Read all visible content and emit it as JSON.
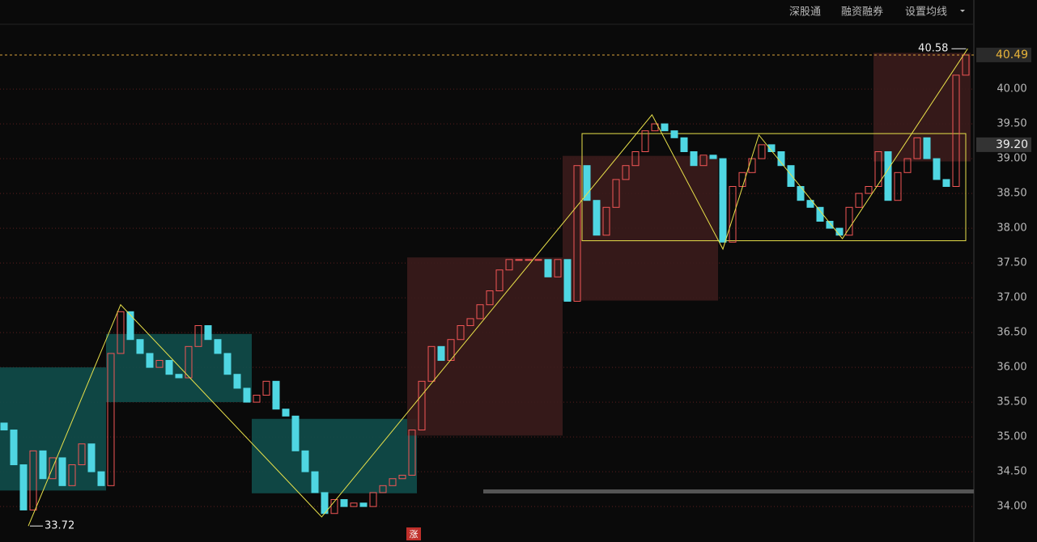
{
  "toolbar": [
    "深股通",
    "融资融券",
    "设置均线"
  ],
  "badge": "涨",
  "chart_data": {
    "type": "candlestick",
    "open": [
      35.2,
      35.1,
      34.6,
      33.95,
      34.8,
      34.4,
      34.7,
      34.3,
      34.6,
      34.9,
      34.5,
      34.3,
      36.2,
      36.8,
      36.4,
      36.2,
      36.0,
      36.1,
      35.9,
      35.85,
      36.3,
      36.6,
      36.4,
      36.2,
      35.9,
      35.7,
      35.5,
      35.6,
      35.8,
      35.4,
      35.3,
      34.8,
      34.5,
      34.2,
      33.9,
      34.1,
      34.0,
      34.05,
      34.0,
      34.2,
      34.3,
      34.4,
      34.45,
      35.1,
      35.8,
      36.3,
      36.1,
      36.4,
      36.6,
      36.7,
      36.9,
      37.1,
      37.4,
      37.55,
      37.55,
      37.55,
      37.55,
      37.3,
      37.55,
      36.95,
      38.9,
      38.4,
      37.9,
      38.3,
      38.7,
      38.9,
      39.1,
      39.4,
      39.5,
      39.4,
      39.3,
      39.1,
      38.9,
      39.05,
      39.0,
      37.8,
      38.6,
      38.8,
      39.0,
      39.2,
      39.1,
      38.9,
      38.6,
      38.4,
      38.3,
      38.1,
      38.0,
      37.9,
      38.3,
      38.5,
      38.6,
      39.1,
      38.4,
      38.8,
      39.0,
      39.3,
      39.0,
      38.7,
      38.6,
      40.2
    ],
    "close": [
      35.1,
      34.6,
      33.95,
      34.8,
      34.4,
      34.7,
      34.3,
      34.6,
      34.9,
      34.5,
      34.3,
      36.2,
      36.8,
      36.4,
      36.2,
      36.0,
      36.1,
      35.9,
      35.85,
      36.3,
      36.6,
      36.4,
      36.2,
      35.9,
      35.7,
      35.5,
      35.6,
      35.8,
      35.4,
      35.3,
      34.8,
      34.5,
      34.2,
      33.9,
      34.1,
      34.0,
      34.05,
      34.0,
      34.2,
      34.3,
      34.4,
      34.45,
      35.1,
      35.8,
      36.3,
      36.1,
      36.4,
      36.6,
      36.7,
      36.9,
      37.1,
      37.4,
      37.55,
      37.55,
      37.55,
      37.55,
      37.3,
      37.55,
      36.95,
      38.9,
      38.4,
      37.9,
      38.3,
      38.7,
      38.9,
      39.1,
      39.4,
      39.5,
      39.4,
      39.3,
      39.1,
      38.9,
      39.05,
      39.0,
      37.8,
      38.6,
      38.8,
      39.0,
      39.2,
      39.1,
      38.9,
      38.6,
      38.4,
      38.3,
      38.1,
      38.0,
      37.9,
      38.3,
      38.5,
      38.6,
      39.1,
      38.4,
      38.8,
      39.0,
      39.3,
      39.0,
      38.7,
      38.6,
      40.2,
      40.49
    ],
    "up_color": "#f25656",
    "down_color": "#4fd6e2",
    "zones": [
      {
        "x": [
          0,
          10
        ],
        "values": [
          34.23,
          36.0
        ],
        "color": "#0f4d4a"
      },
      {
        "x": [
          11,
          25
        ],
        "values": [
          35.5,
          36.48
        ],
        "color": "#0f4d4a"
      },
      {
        "x": [
          26,
          42
        ],
        "values": [
          34.19,
          35.26
        ],
        "color": "#0f4d4a"
      },
      {
        "x": [
          42,
          57
        ],
        "values": [
          35.02,
          37.58
        ],
        "color": "#3a1b1b"
      },
      {
        "x": [
          58,
          73
        ],
        "values": [
          36.96,
          39.04
        ],
        "color": "#3a1b1b"
      },
      {
        "x": [
          90,
          99
        ],
        "values": [
          38.96,
          40.52
        ],
        "color": "#3a1b1b"
      },
      {
        "x": [
          60,
          98.5
        ],
        "values": [
          37.82,
          39.36
        ],
        "color": "#e8e04a",
        "outline": true
      }
    ],
    "zigzag": {
      "color": "#e8e04a",
      "x": [
        2.5,
        12,
        32.7,
        66.7,
        74,
        77.7,
        86.3,
        99.2
      ],
      "values": [
        33.72,
        36.9,
        33.85,
        39.63,
        37.7,
        39.34,
        37.85,
        40.58
      ]
    },
    "ylim": [
      33.49,
      41.28
    ],
    "yticks": [
      {
        "value": 34,
        "label": "34.00"
      },
      {
        "value": 34.5,
        "label": "34.50"
      },
      {
        "value": 35,
        "label": "35.00"
      },
      {
        "value": 35.5,
        "label": "35.50"
      },
      {
        "value": 36,
        "label": "36.00"
      },
      {
        "value": 36.5,
        "label": "36.50"
      },
      {
        "value": 37,
        "label": "37.00"
      },
      {
        "value": 37.5,
        "label": "37.50"
      },
      {
        "value": 38,
        "label": "38.00"
      },
      {
        "value": 38.5,
        "label": "38.50"
      },
      {
        "value": 39,
        "label": "39.00"
      },
      {
        "value": 39.5,
        "label": "39.50"
      },
      {
        "value": 40,
        "label": "40.00"
      }
    ],
    "last_price": 40.49,
    "marker": {
      "value": 39.2,
      "label": "39.20"
    },
    "high": 40.58,
    "low": 33.72
  }
}
